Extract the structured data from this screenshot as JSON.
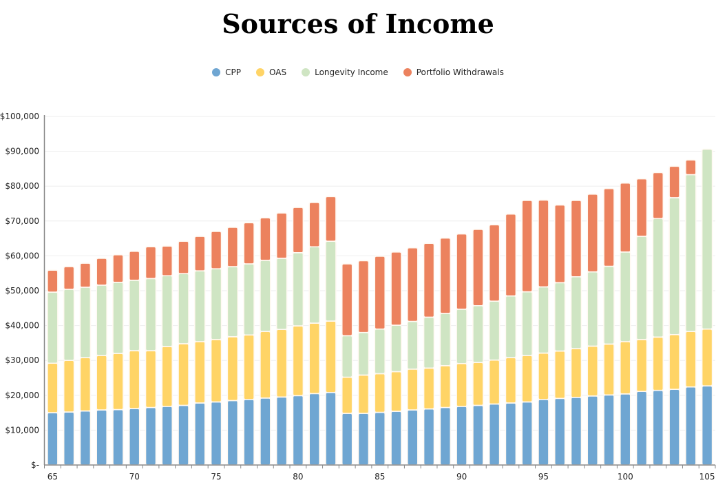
{
  "chart_data": {
    "type": "bar",
    "stacked": true,
    "title": "Sources of Income",
    "xlabel": "",
    "ylabel": "",
    "ylim": [
      0,
      100000
    ],
    "yticks": [
      "$-",
      "$10,000",
      "$20,000",
      "$30,000",
      "$40,000",
      "$50,000",
      "$60,000",
      "$70,000",
      "$80,000",
      "$90,000",
      "$100,000"
    ],
    "xticks": [
      "65",
      "70",
      "75",
      "80",
      "85",
      "90",
      "95",
      "100",
      "105"
    ],
    "grid": true,
    "legend_position": "top",
    "categories": [
      65,
      66,
      67,
      68,
      69,
      70,
      71,
      72,
      73,
      74,
      75,
      76,
      77,
      78,
      79,
      80,
      81,
      82,
      83,
      84,
      85,
      86,
      87,
      88,
      89,
      90,
      91,
      92,
      93,
      94,
      95,
      96,
      97,
      98,
      99,
      100,
      101,
      102,
      103,
      104,
      105
    ],
    "series": [
      {
        "name": "CPP",
        "color": "#6fa6d2",
        "values": [
          15000,
          15200,
          15500,
          15800,
          15900,
          16200,
          16500,
          16800,
          17100,
          17800,
          18100,
          18500,
          18800,
          19200,
          19500,
          19900,
          20500,
          20800,
          14800,
          14800,
          15100,
          15400,
          15800,
          16100,
          16500,
          16800,
          17100,
          17500,
          17800,
          18100,
          18800,
          19100,
          19400,
          19800,
          20100,
          20400,
          21100,
          21400,
          21700,
          22400,
          22700
        ]
      },
      {
        "name": "OAS",
        "color": "#ffd466",
        "values": [
          14200,
          14800,
          15300,
          15600,
          16100,
          16600,
          16300,
          17200,
          17700,
          17600,
          17900,
          18300,
          18500,
          19100,
          19400,
          20000,
          20200,
          20500,
          10400,
          11000,
          11100,
          11400,
          11700,
          11700,
          12000,
          12300,
          12300,
          12600,
          13000,
          13300,
          13300,
          13600,
          14000,
          14300,
          14600,
          15000,
          14900,
          15300,
          15700,
          15900,
          16300
        ]
      },
      {
        "name": "Longevity Income",
        "color": "#cfe5c3",
        "values": [
          20400,
          20400,
          20200,
          20200,
          20400,
          20200,
          20700,
          20300,
          20100,
          20300,
          20300,
          20100,
          20400,
          20400,
          20400,
          21000,
          21900,
          22900,
          11900,
          12200,
          12800,
          13300,
          13700,
          14600,
          15000,
          15600,
          16300,
          16900,
          17700,
          18300,
          19000,
          19600,
          20600,
          21300,
          22300,
          25700,
          29600,
          34000,
          39300,
          45000,
          51600
        ]
      },
      {
        "name": "Portfolio Withdrawals",
        "color": "#ec825e",
        "values": [
          6300,
          6500,
          6900,
          7700,
          7900,
          8300,
          9100,
          8500,
          9300,
          9900,
          10700,
          11300,
          11800,
          12200,
          13000,
          13000,
          12700,
          12800,
          20600,
          20600,
          20900,
          21000,
          21100,
          21200,
          21600,
          21600,
          21900,
          21900,
          23500,
          26200,
          24900,
          22300,
          21900,
          22300,
          22300,
          19800,
          16500,
          13200,
          9000,
          4200,
          0
        ]
      }
    ]
  }
}
